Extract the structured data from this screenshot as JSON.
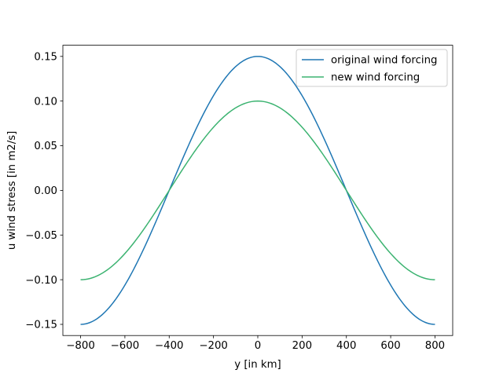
{
  "chart_data": {
    "type": "line",
    "title": "",
    "xlabel": "y [in km]",
    "ylabel": "u wind stress [in m2/s]",
    "xlim": [
      -880,
      880
    ],
    "ylim": [
      -0.1625,
      0.1625
    ],
    "xticks": [
      -800,
      -600,
      -400,
      -200,
      0,
      200,
      400,
      600,
      800
    ],
    "xtick_labels": [
      "−800",
      "−600",
      "−400",
      "−200",
      "0",
      "200",
      "400",
      "600",
      "800"
    ],
    "yticks": [
      -0.15,
      -0.1,
      -0.05,
      0.0,
      0.05,
      0.1,
      0.15
    ],
    "ytick_labels": [
      "−0.15",
      "−0.10",
      "−0.05",
      "0.00",
      "0.05",
      "0.10",
      "0.15"
    ],
    "grid": false,
    "legend_position": "upper right",
    "x": [
      -800,
      -700,
      -600,
      -500,
      -400,
      -300,
      -200,
      -100,
      0,
      100,
      200,
      300,
      400,
      500,
      600,
      700,
      800
    ],
    "series": [
      {
        "name": "original wind forcing",
        "color": "#1f77b4",
        "values": [
          -0.15,
          -0.1386,
          -0.1061,
          -0.0574,
          0.0,
          0.0574,
          0.1061,
          0.1386,
          0.15,
          0.1386,
          0.1061,
          0.0574,
          0.0,
          -0.0574,
          -0.1061,
          -0.1386,
          -0.15
        ]
      },
      {
        "name": "new wind forcing",
        "color": "#3cb371",
        "values": [
          -0.1,
          -0.0924,
          -0.0707,
          -0.0383,
          0.0,
          0.0383,
          0.0707,
          0.0924,
          0.1,
          0.0924,
          0.0707,
          0.0383,
          0.0,
          -0.0383,
          -0.0707,
          -0.0924,
          -0.1
        ]
      }
    ]
  }
}
